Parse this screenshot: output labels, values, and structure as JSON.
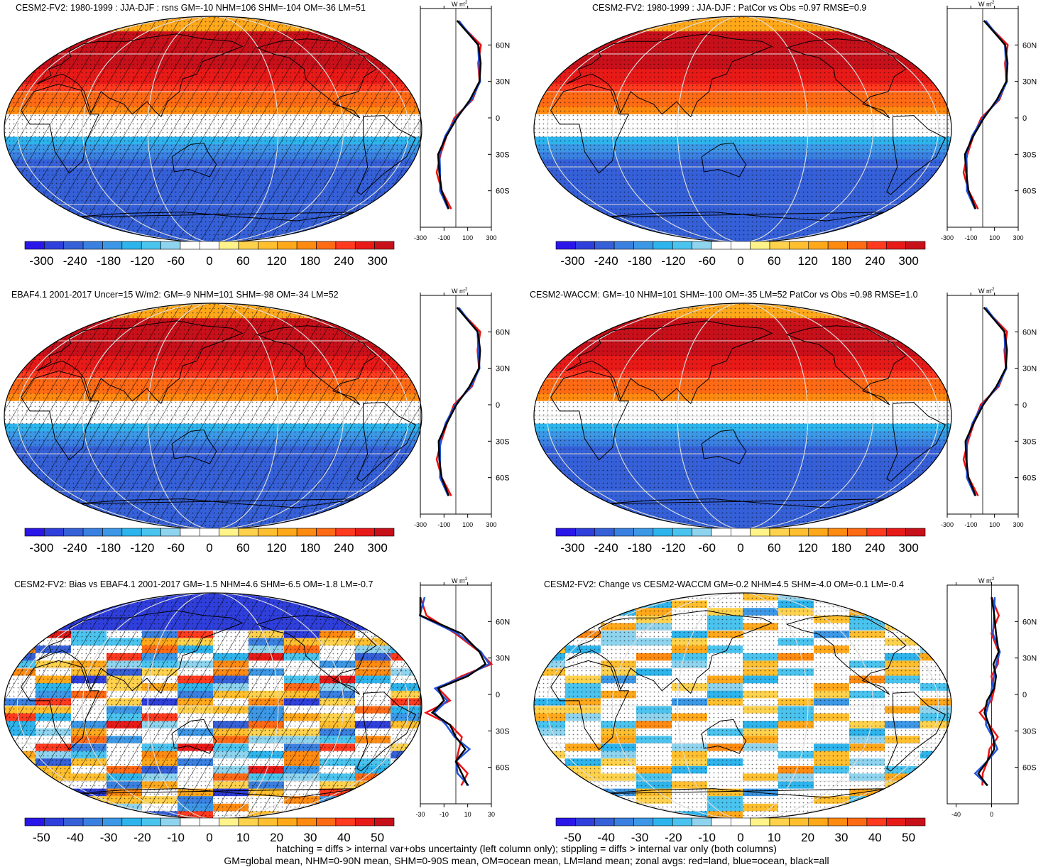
{
  "colors": {
    "palette": [
      "#2a16e8",
      "#2f3fdc",
      "#3560d8",
      "#3a80e0",
      "#3c98e6",
      "#2eb4ec",
      "#4ac4ef",
      "#8fd4ef",
      "#ffffff",
      "#ffffff",
      "#fff38a",
      "#ffd24d",
      "#ffbf2e",
      "#ffa81a",
      "#ff8a10",
      "#ff6a14",
      "#ff3a1e",
      "#e81a18",
      "#c8101a"
    ],
    "land_line": "#2255dd",
    "ocean_line": "#ee1111",
    "all_line": "#000000"
  },
  "panels": [
    {
      "title": "CESM2-FV2: 1980-1999 : JJA-DJF : rsns GM=-10 NHM=106 SHM=-104 OM=-36 LM=51",
      "hatched": true,
      "kind": "seasonal",
      "zonal_unit": "W m",
      "zonal_unit_sup": "-2",
      "zonal_xticks": [
        "-300",
        "-100",
        "100",
        "300"
      ],
      "zonal_yticks": [
        "60N",
        "30N",
        "0",
        "30S",
        "60S"
      ],
      "colorbar_labels": [
        "-300",
        "-240",
        "-180",
        "-120",
        "-60",
        "0",
        "60",
        "120",
        "180",
        "240",
        "300"
      ]
    },
    {
      "title": "CESM2-FV2: 1980-1999 : JJA-DJF : PatCor vs Obs =0.97 RMSE=0.9",
      "hatched": false,
      "kind": "seasonal",
      "zonal_unit": "W m",
      "zonal_unit_sup": "-2",
      "zonal_xticks": [
        "-300",
        "-100",
        "100",
        "300"
      ],
      "zonal_yticks": [
        "60N",
        "30N",
        "0",
        "30S",
        "60S"
      ],
      "colorbar_labels": [
        "-300",
        "-240",
        "-180",
        "-120",
        "-60",
        "0",
        "60",
        "120",
        "180",
        "240",
        "300"
      ]
    },
    {
      "title": "EBAF4.1 2001-2017 Uncer=15 W/m2: GM=-9 NHM=101 SHM=-98 OM=-34 LM=52",
      "hatched": true,
      "kind": "seasonal",
      "zonal_unit": "W m",
      "zonal_unit_sup": "-2",
      "zonal_xticks": [
        "-300",
        "-100",
        "100",
        "300"
      ],
      "zonal_yticks": [
        "60N",
        "30N",
        "0",
        "30S",
        "60S"
      ],
      "colorbar_labels": [
        "-300",
        "-240",
        "-180",
        "-120",
        "-60",
        "0",
        "60",
        "120",
        "180",
        "240",
        "300"
      ]
    },
    {
      "title": "CESM2-WACCM: GM=-10 NHM=101 SHM=-100 OM=-35 LM=52 PatCor vs Obs =0.98 RMSE=1.0",
      "hatched": false,
      "kind": "seasonal",
      "zonal_unit": "W m",
      "zonal_unit_sup": "-2",
      "zonal_xticks": [
        "-300",
        "-100",
        "100",
        "300"
      ],
      "zonal_yticks": [
        "60N",
        "30N",
        "0",
        "30S",
        "60S"
      ],
      "colorbar_labels": [
        "-300",
        "-240",
        "-180",
        "-120",
        "-60",
        "0",
        "60",
        "120",
        "180",
        "240",
        "300"
      ]
    },
    {
      "title": "CESM2-FV2: Bias vs EBAF4.1 2001-2017 GM=-1.5 NHM=4.6 SHM=-6.5 OM=-1.8 LM=-0.7",
      "hatched": true,
      "kind": "bias",
      "zonal_unit": "W m",
      "zonal_unit_sup": "-2",
      "zonal_xticks": [
        "-30",
        "-10",
        "10",
        "30"
      ],
      "zonal_yticks": [
        "60N",
        "30N",
        "0",
        "30S",
        "60S"
      ],
      "colorbar_labels": [
        "-50",
        "-40",
        "-30",
        "-20",
        "-10",
        "0",
        "10",
        "20",
        "30",
        "40",
        "50"
      ]
    },
    {
      "title": "CESM2-FV2: Change vs CESM2-WACCM GM=-0.2 NHM=4.5 SHM=-4.0 OM=-0.1 LM=-0.4",
      "hatched": false,
      "kind": "change",
      "zonal_unit": "W m",
      "zonal_unit_sup": "-2",
      "zonal_xticks": [
        "-40",
        "0"
      ],
      "zonal_yticks": [
        "60N",
        "30N",
        "0",
        "30S",
        "60S"
      ],
      "colorbar_labels": [
        "-50",
        "-40",
        "-30",
        "-20",
        "-10",
        "0",
        "10",
        "20",
        "30",
        "40",
        "50"
      ]
    }
  ],
  "footer": {
    "line1": "hatching = diffs > internal var+obs uncertainty (left column only); stippling = diffs > internal var only (both columns)",
    "line2": "GM=global mean, NHM=0-90N mean, SHM=0-90S mean, OM=ocean mean, LM=land mean; zonal avgs: red=land, blue=ocean, black=all"
  },
  "chart_data": [
    {
      "type": "heatmap",
      "title": "CESM2-FV2: 1980-1999 : JJA-DJF : rsns GM=-10 NHM=106 SHM=-104 OM=-36 LM=51",
      "colorbar_range": [
        -300,
        300
      ],
      "zonal_mean_lat": [
        80,
        60,
        45,
        30,
        15,
        0,
        -15,
        -30,
        -45,
        -60,
        -75
      ],
      "zonal_mean_all": [
        10,
        190,
        210,
        200,
        120,
        10,
        -80,
        -150,
        -140,
        -120,
        -60
      ]
    },
    {
      "type": "heatmap",
      "title": "CESM2-FV2: 1980-1999 : JJA-DJF : PatCor vs Obs =0.97 RMSE=0.9",
      "colorbar_range": [
        -300,
        300
      ],
      "zonal_mean_lat": [
        80,
        60,
        45,
        30,
        15,
        0,
        -15,
        -30,
        -45,
        -60,
        -75
      ],
      "zonal_mean_all": [
        10,
        190,
        210,
        200,
        120,
        10,
        -80,
        -150,
        -140,
        -120,
        -60
      ]
    },
    {
      "type": "heatmap",
      "title": "EBAF4.1 2001-2017 Uncer=15 W/m2: GM=-9 NHM=101 SHM=-98 OM=-34 LM=52",
      "colorbar_range": [
        -300,
        300
      ],
      "zonal_mean_lat": [
        80,
        60,
        45,
        30,
        15,
        0,
        -15,
        -30,
        -45,
        -60,
        -75
      ],
      "zonal_mean_all": [
        10,
        185,
        205,
        195,
        115,
        5,
        -75,
        -145,
        -140,
        -120,
        -60
      ]
    },
    {
      "type": "heatmap",
      "title": "CESM2-WACCM: GM=-10 NHM=101 SHM=-100 OM=-35 LM=52 PatCor vs Obs =0.98 RMSE=1.0",
      "colorbar_range": [
        -300,
        300
      ],
      "zonal_mean_lat": [
        80,
        60,
        45,
        30,
        15,
        0,
        -15,
        -30,
        -45,
        -60,
        -75
      ],
      "zonal_mean_all": [
        10,
        185,
        205,
        195,
        115,
        5,
        -75,
        -145,
        -140,
        -120,
        -60
      ]
    },
    {
      "type": "heatmap",
      "title": "CESM2-FV2: Bias vs EBAF4.1 2001-2017 GM=-1.5 NHM=4.6 SHM=-6.5 OM=-1.8 LM=-0.7",
      "colorbar_range": [
        -50,
        50
      ],
      "zonal_mean_lat": [
        80,
        65,
        50,
        35,
        25,
        15,
        5,
        -5,
        -15,
        -25,
        -35,
        -45,
        -55,
        -65,
        -75
      ],
      "zonal_mean_all": [
        -30,
        -30,
        5,
        20,
        25,
        10,
        -15,
        -10,
        -20,
        -5,
        0,
        8,
        0,
        5,
        10
      ]
    },
    {
      "type": "heatmap",
      "title": "CESM2-FV2: Change vs CESM2-WACCM GM=-0.2 NHM=4.5 SHM=-4.0 OM=-0.1 LM=-0.4",
      "colorbar_range": [
        -50,
        50
      ],
      "zonal_mean_lat": [
        80,
        65,
        50,
        35,
        25,
        15,
        5,
        -5,
        -15,
        -25,
        -35,
        -45,
        -55,
        -65,
        -75
      ],
      "zonal_mean_all": [
        0,
        3,
        5,
        8,
        2,
        5,
        3,
        -5,
        -8,
        -3,
        2,
        3,
        -5,
        -15,
        -5
      ]
    }
  ]
}
